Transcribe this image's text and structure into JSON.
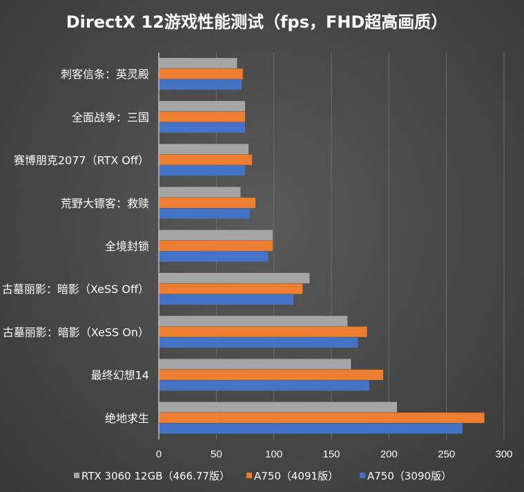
{
  "chart_data": {
    "type": "bar",
    "orientation": "horizontal",
    "title": "DirectX 12游戏性能测试（fps，FHD超高画质）",
    "categories": [
      "刺客信条：英灵殿",
      "全面战争：三国",
      "赛博朋克2077（RTX Off）",
      "荒野大镖客：救赎",
      "全境封锁",
      "古墓丽影：暗影（XeSS Off）",
      "古墓丽影：暗影（XeSS On）",
      "最终幻想14",
      "绝地求生"
    ],
    "series": [
      {
        "name": "RTX 3060 12GB（466.77版）",
        "color": "#a5a5a5",
        "values": [
          68,
          75,
          78,
          71,
          99,
          131,
          164,
          167,
          207
        ]
      },
      {
        "name": "A750（4091版）",
        "color": "#ed7d31",
        "values": [
          73,
          75,
          81,
          84,
          99,
          125,
          181,
          195,
          283
        ]
      },
      {
        "name": "A750（3090版）",
        "color": "#4472c4",
        "values": [
          72,
          75,
          75,
          79,
          95,
          117,
          173,
          183,
          264
        ]
      }
    ],
    "xlim": [
      0,
      300
    ],
    "xticks": [
      0,
      50,
      100,
      150,
      200,
      250,
      300
    ],
    "grid": true,
    "legend_position": "bottom"
  }
}
